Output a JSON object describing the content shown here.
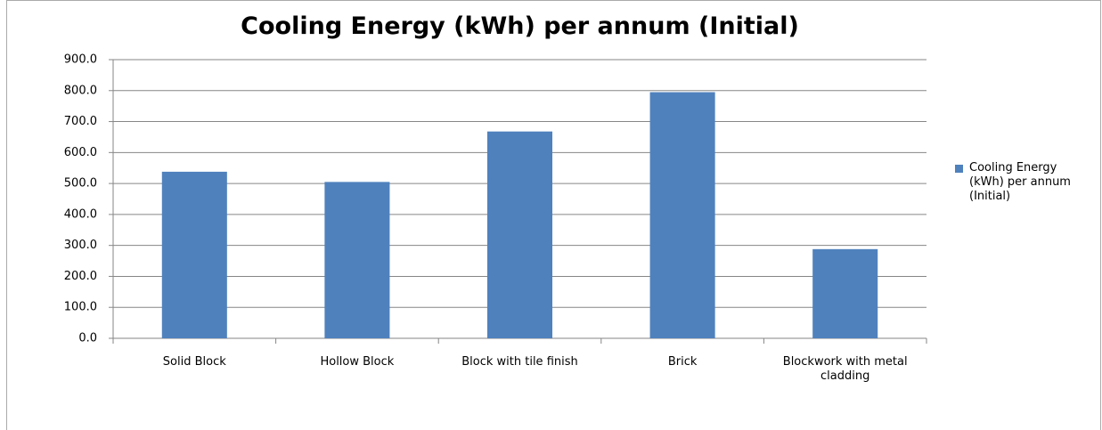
{
  "chart_data": {
    "type": "bar",
    "title": "Cooling Energy (kWh) per annum (Initial)",
    "categories": [
      "Solid Block",
      "Hollow Block",
      "Block with  tile finish",
      "Brick",
      "Blockwork with metal cladding"
    ],
    "series": [
      {
        "name": "Cooling Energy (kWh) per annum (Initial)",
        "color": "#4f81bd",
        "values": [
          538,
          505,
          668,
          795,
          288
        ]
      }
    ],
    "ylim": [
      0,
      900
    ],
    "yticks": [
      {
        "value": 0,
        "label": "0.0"
      },
      {
        "value": 100,
        "label": "100.0"
      },
      {
        "value": 200,
        "label": "200.0"
      },
      {
        "value": 300,
        "label": "300.0"
      },
      {
        "value": 400,
        "label": "400.0"
      },
      {
        "value": 500,
        "label": "500.0"
      },
      {
        "value": 600,
        "label": "600.0"
      },
      {
        "value": 700,
        "label": "700.0"
      },
      {
        "value": 800,
        "label": "800.0"
      },
      {
        "value": 900,
        "label": "900.0"
      }
    ],
    "grid": true,
    "legend": "right"
  }
}
